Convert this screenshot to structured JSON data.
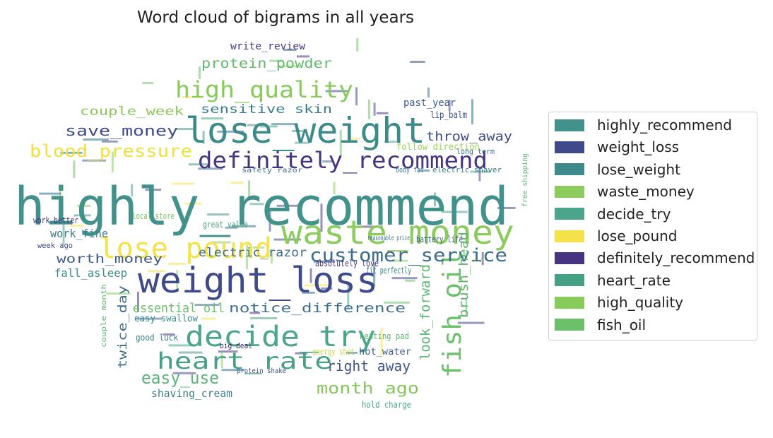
{
  "chart_data": {
    "type": "wordcloud",
    "title": "Word cloud of bigrams in all years",
    "legend_placement": "right",
    "legend": [
      {
        "label": "highly_recommend",
        "color": "#43918b"
      },
      {
        "label": "weight_loss",
        "color": "#3e4a89"
      },
      {
        "label": "lose_weight",
        "color": "#3d8a8a"
      },
      {
        "label": "waste_money",
        "color": "#8ccc5e"
      },
      {
        "label": "decide_try",
        "color": "#4aa58a"
      },
      {
        "label": "lose_pound",
        "color": "#f5e24b"
      },
      {
        "label": "definitely_recommend",
        "color": "#463480"
      },
      {
        "label": "heart_rate",
        "color": "#46a083"
      },
      {
        "label": "high_quality",
        "color": "#87cb5a"
      },
      {
        "label": "fish_oil",
        "color": "#6cc06a"
      }
    ],
    "words": [
      {
        "text": "highly_recommend",
        "color": "#43918b"
      },
      {
        "text": "weight_loss",
        "color": "#3e4a89"
      },
      {
        "text": "lose_weight",
        "color": "#3d8a8a"
      },
      {
        "text": "waste_money",
        "color": "#8ccc5e"
      },
      {
        "text": "decide_try",
        "color": "#4aa58a"
      },
      {
        "text": "lose_pound",
        "color": "#f5e24b"
      },
      {
        "text": "definitely_recommend",
        "color": "#463480"
      },
      {
        "text": "heart_rate",
        "color": "#46a083"
      },
      {
        "text": "high_quality",
        "color": "#87cb5a"
      },
      {
        "text": "fish_oil",
        "color": "#6cc06a"
      },
      {
        "text": "customer_service",
        "color": "#3b6c90"
      },
      {
        "text": "blood_pressure",
        "color": "#f2df3c"
      },
      {
        "text": "save_money",
        "color": "#3f4a8a"
      },
      {
        "text": "protein_powder",
        "color": "#63ba6d"
      },
      {
        "text": "sensitive skin",
        "color": "#3a7c8e"
      },
      {
        "text": "couple_week",
        "color": "#8bc85c"
      },
      {
        "text": "throw_away",
        "color": "#3d4d8a"
      },
      {
        "text": "month ago",
        "color": "#86c75b"
      },
      {
        "text": "right away",
        "color": "#41558c"
      },
      {
        "text": "easy_use",
        "color": "#5ab47a"
      },
      {
        "text": "notice_difference",
        "color": "#3f6f8e"
      },
      {
        "text": "essential oil",
        "color": "#6bbf6a"
      },
      {
        "text": "worth_money",
        "color": "#3d5a8c"
      },
      {
        "text": "electric_razor",
        "color": "#3c6e8e"
      },
      {
        "text": "look_forward",
        "color": "#5cb672"
      },
      {
        "text": "brush_head",
        "color": "#5eb56e"
      },
      {
        "text": "twice_day",
        "color": "#3d6f8e"
      },
      {
        "text": "fall_asleep",
        "color": "#3a8a8b"
      },
      {
        "text": "work_fine",
        "color": "#3a7c8e"
      },
      {
        "text": "shaving_cream",
        "color": "#3e7f8c"
      },
      {
        "text": "write_review",
        "color": "#463480"
      },
      {
        "text": "past_year",
        "color": "#3a5a8c"
      },
      {
        "text": "lip_balm",
        "color": "#40508a"
      },
      {
        "text": "follow direction",
        "color": "#9bd35a"
      },
      {
        "text": "hot_water",
        "color": "#3c5f8c"
      },
      {
        "text": "heating pad",
        "color": "#5bb66f"
      },
      {
        "text": "hold charge",
        "color": "#4aa58a"
      },
      {
        "text": "good luck",
        "color": "#3d7f8d"
      },
      {
        "text": "work better",
        "color": "#45337e"
      },
      {
        "text": "local store",
        "color": "#7ac561"
      },
      {
        "text": "great value",
        "color": "#48a37d"
      },
      {
        "text": "week ago",
        "color": "#3c4c8a"
      },
      {
        "text": "battery life",
        "color": "#41558c"
      },
      {
        "text": "absolutely love",
        "color": "#463480"
      },
      {
        "text": "protein shake",
        "color": "#3d4f8a"
      },
      {
        "text": "big deal",
        "color": "#2c1f5e"
      },
      {
        "text": "easy swallow",
        "color": "#3b8a8b"
      },
      {
        "text": "couple month",
        "color": "#5cb672"
      },
      {
        "text": "electric shaver",
        "color": "#3a7c8e"
      },
      {
        "text": "body fat",
        "color": "#3a7c8e"
      },
      {
        "text": "long term",
        "color": "#3d6f8e"
      },
      {
        "text": "safety razor",
        "color": "#3d6f8e"
      },
      {
        "text": "reasonable price",
        "color": "#3d6f8e"
      },
      {
        "text": "free shipping",
        "color": "#5cb672"
      },
      {
        "text": "energy shot",
        "color": "#c7d84a"
      },
      {
        "text": "fit perfectly",
        "color": "#3a7c8e"
      }
    ]
  }
}
